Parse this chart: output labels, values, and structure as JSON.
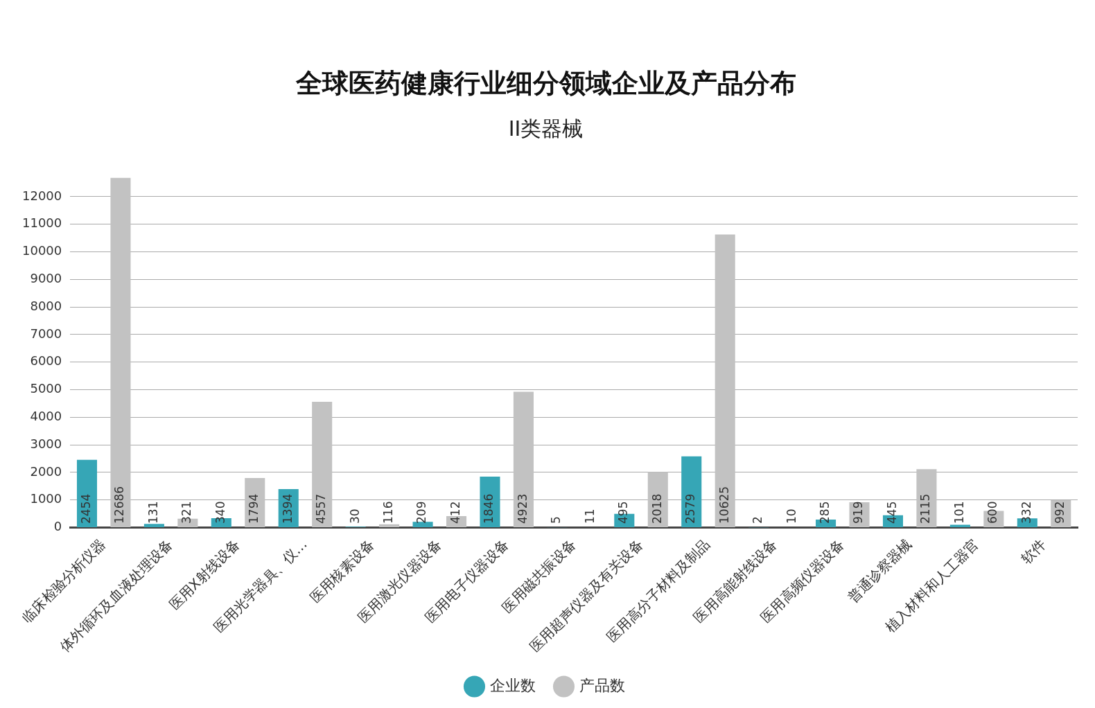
{
  "chart_data": {
    "type": "bar",
    "title": "全球医药健康行业细分领域企业及产品分布",
    "subtitle": "II类器械",
    "categories": [
      "临床检验分析仪器",
      "体外循环及血液处理设备",
      "医用X射线设备",
      "医用光学器具、仪…",
      "医用核素设备",
      "医用激光仪器设备",
      "医用电子仪器设备",
      "医用磁共振设备",
      "医用超声仪器及有关设备",
      "医用高分子材料及制品",
      "医用高能射线设备",
      "医用高频仪器设备",
      "普通诊察器械",
      "植入材料和人工器官",
      "软件"
    ],
    "series": [
      {
        "name": "企业数",
        "color": "#36a6b6",
        "values": [
          2454,
          131,
          340,
          1394,
          30,
          209,
          1846,
          5,
          495,
          2579,
          2,
          285,
          445,
          101,
          332
        ]
      },
      {
        "name": "产品数",
        "color": "#c2c2c2",
        "values": [
          12686,
          321,
          1794,
          4557,
          116,
          412,
          4923,
          11,
          2018,
          10625,
          10,
          919,
          2115,
          600,
          992
        ]
      }
    ],
    "ylim": [
      0,
      12686
    ],
    "yticks": [
      0,
      1000,
      2000,
      3000,
      4000,
      5000,
      6000,
      7000,
      8000,
      9000,
      10000,
      11000,
      12000
    ],
    "grid": "y",
    "legend": "bottom",
    "data_labels": true
  }
}
